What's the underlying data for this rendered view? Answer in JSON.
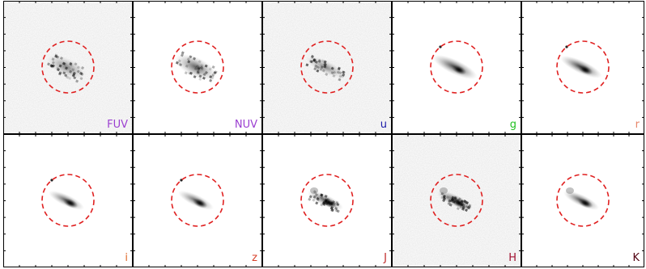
{
  "figure": {
    "panels": [
      {
        "band": "FUV",
        "color": "#9b3fd1"
      },
      {
        "band": "NUV",
        "color": "#9b3fd1"
      },
      {
        "band": "u",
        "color": "#1a1aa8"
      },
      {
        "band": "g",
        "color": "#22c022"
      },
      {
        "band": "r",
        "color": "#e8866a"
      },
      {
        "band": "i",
        "color": "#e06a2a"
      },
      {
        "band": "z",
        "color": "#d8402a"
      },
      {
        "band": "J",
        "color": "#c02a2a"
      },
      {
        "band": "H",
        "color": "#a01030"
      },
      {
        "band": "K",
        "color": "#500010"
      }
    ],
    "aperture_color": "#e02020"
  }
}
